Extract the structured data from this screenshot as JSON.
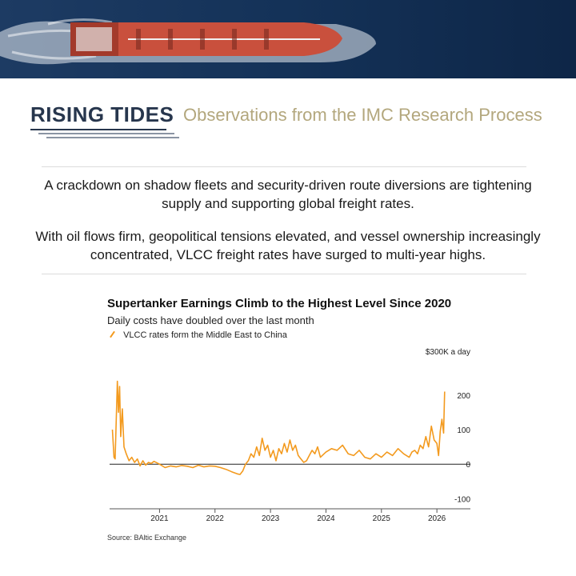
{
  "header": {
    "brand": "RISING TIDES",
    "tagline": "Observations from the IMC Research Process"
  },
  "intro": {
    "paragraph1": "A crackdown on shadow fleets and security-driven route diversions are tightening supply and supporting global freight rates.",
    "paragraph2": "With oil flows firm, geopolitical tensions elevated, and vessel ownership increasingly concentrated, VLCC freight rates have surged to multi-year highs."
  },
  "chart_data": {
    "type": "line",
    "title": "Supertanker Earnings Climb to the Highest Level Since 2020",
    "subtitle": "Daily costs have doubled over the last month",
    "unit_label": "$300K a day",
    "series": [
      {
        "name": "VLCC rates form the Middle East to China",
        "color": "#f39a1e",
        "points": [
          [
            2020.15,
            100
          ],
          [
            2020.18,
            20
          ],
          [
            2020.2,
            15
          ],
          [
            2020.24,
            240
          ],
          [
            2020.26,
            150
          ],
          [
            2020.28,
            225
          ],
          [
            2020.3,
            80
          ],
          [
            2020.33,
            160
          ],
          [
            2020.36,
            50
          ],
          [
            2020.4,
            30
          ],
          [
            2020.45,
            10
          ],
          [
            2020.5,
            20
          ],
          [
            2020.55,
            5
          ],
          [
            2020.6,
            15
          ],
          [
            2020.65,
            -5
          ],
          [
            2020.7,
            10
          ],
          [
            2020.75,
            -3
          ],
          [
            2020.8,
            5
          ],
          [
            2020.85,
            2
          ],
          [
            2020.9,
            8
          ],
          [
            2021.0,
            0
          ],
          [
            2021.1,
            -10
          ],
          [
            2021.2,
            -5
          ],
          [
            2021.3,
            -8
          ],
          [
            2021.4,
            -4
          ],
          [
            2021.5,
            -6
          ],
          [
            2021.6,
            -10
          ],
          [
            2021.7,
            -3
          ],
          [
            2021.8,
            -8
          ],
          [
            2021.9,
            -5
          ],
          [
            2022.0,
            -6
          ],
          [
            2022.1,
            -10
          ],
          [
            2022.2,
            -15
          ],
          [
            2022.3,
            -22
          ],
          [
            2022.4,
            -28
          ],
          [
            2022.45,
            -30
          ],
          [
            2022.5,
            -20
          ],
          [
            2022.55,
            0
          ],
          [
            2022.6,
            10
          ],
          [
            2022.65,
            30
          ],
          [
            2022.7,
            20
          ],
          [
            2022.75,
            50
          ],
          [
            2022.8,
            25
          ],
          [
            2022.85,
            75
          ],
          [
            2022.9,
            40
          ],
          [
            2022.95,
            55
          ],
          [
            2023.0,
            20
          ],
          [
            2023.05,
            40
          ],
          [
            2023.1,
            10
          ],
          [
            2023.15,
            45
          ],
          [
            2023.2,
            30
          ],
          [
            2023.25,
            60
          ],
          [
            2023.3,
            35
          ],
          [
            2023.35,
            70
          ],
          [
            2023.4,
            40
          ],
          [
            2023.45,
            55
          ],
          [
            2023.5,
            25
          ],
          [
            2023.55,
            15
          ],
          [
            2023.6,
            5
          ],
          [
            2023.65,
            10
          ],
          [
            2023.7,
            25
          ],
          [
            2023.75,
            40
          ],
          [
            2023.8,
            30
          ],
          [
            2023.85,
            50
          ],
          [
            2023.9,
            20
          ],
          [
            2024.0,
            35
          ],
          [
            2024.1,
            45
          ],
          [
            2024.2,
            40
          ],
          [
            2024.3,
            55
          ],
          [
            2024.4,
            30
          ],
          [
            2024.5,
            25
          ],
          [
            2024.6,
            40
          ],
          [
            2024.7,
            20
          ],
          [
            2024.8,
            15
          ],
          [
            2024.9,
            30
          ],
          [
            2025.0,
            20
          ],
          [
            2025.1,
            35
          ],
          [
            2025.2,
            25
          ],
          [
            2025.3,
            45
          ],
          [
            2025.4,
            30
          ],
          [
            2025.5,
            20
          ],
          [
            2025.55,
            35
          ],
          [
            2025.6,
            40
          ],
          [
            2025.65,
            30
          ],
          [
            2025.7,
            55
          ],
          [
            2025.75,
            45
          ],
          [
            2025.8,
            80
          ],
          [
            2025.85,
            50
          ],
          [
            2025.9,
            110
          ],
          [
            2025.95,
            70
          ],
          [
            2026.0,
            60
          ],
          [
            2026.03,
            25
          ],
          [
            2026.06,
            95
          ],
          [
            2026.09,
            130
          ],
          [
            2026.12,
            90
          ],
          [
            2026.14,
            210
          ]
        ]
      }
    ],
    "x_ticks": [
      {
        "value": 2021,
        "label": "2021"
      },
      {
        "value": 2022,
        "label": "2022"
      },
      {
        "value": 2023,
        "label": "2023"
      },
      {
        "value": 2024,
        "label": "2024"
      },
      {
        "value": 2025,
        "label": "2025"
      },
      {
        "value": 2026,
        "label": "2026"
      }
    ],
    "y_ticks": [
      {
        "value": 200,
        "label": "200"
      },
      {
        "value": 100,
        "label": "100"
      },
      {
        "value": 0,
        "label": "0"
      },
      {
        "value": -100,
        "label": "-100"
      }
    ],
    "xlim": [
      2020.1,
      2026.2
    ],
    "ylim": [
      -120,
      290
    ],
    "grid": false,
    "source": "Source: BAltic Exchange"
  }
}
